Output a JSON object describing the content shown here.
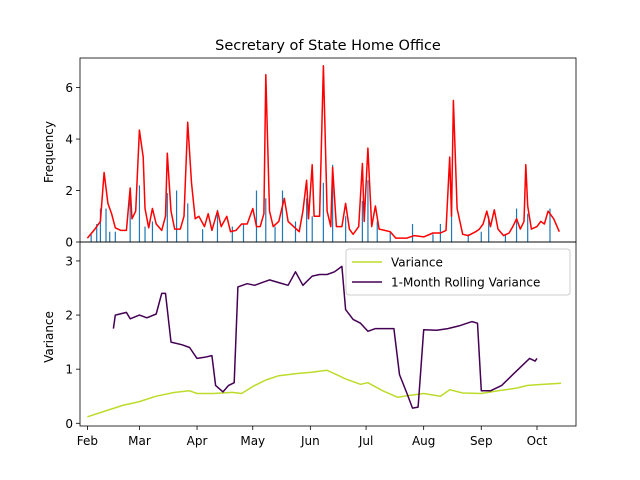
{
  "chart_data": [
    {
      "type": "bar+line",
      "title": "Secretary of State Home Office",
      "ylabel": "Frequency",
      "xlim": [
        "2023-01-28",
        "2023-10-22"
      ],
      "ylim": [
        0,
        7.15
      ],
      "yticks": [
        "0",
        "2",
        "4",
        "6"
      ],
      "colors": {
        "bars": "#1f77b4",
        "line": "#ff0000"
      },
      "series": [
        {
          "kind": "line",
          "points": [
            [
              "2023-02-01",
              0.15
            ],
            [
              "2023-02-05",
              0.5
            ],
            [
              "2023-02-08",
              0.8
            ],
            [
              "2023-02-10",
              2.7
            ],
            [
              "2023-02-12",
              1.5
            ],
            [
              "2023-02-14",
              1.1
            ],
            [
              "2023-02-16",
              0.55
            ],
            [
              "2023-02-19",
              0.45
            ],
            [
              "2023-02-22",
              0.45
            ],
            [
              "2023-02-24",
              2.1
            ],
            [
              "2023-02-25",
              0.9
            ],
            [
              "2023-02-27",
              1.2
            ],
            [
              "2023-03-01",
              4.35
            ],
            [
              "2023-03-03",
              3.3
            ],
            [
              "2023-03-04",
              1.3
            ],
            [
              "2023-03-06",
              0.55
            ],
            [
              "2023-03-08",
              1.3
            ],
            [
              "2023-03-10",
              0.7
            ],
            [
              "2023-03-13",
              0.45
            ],
            [
              "2023-03-15",
              1.0
            ],
            [
              "2023-03-16",
              3.45
            ],
            [
              "2023-03-18",
              1.2
            ],
            [
              "2023-03-20",
              0.5
            ],
            [
              "2023-03-23",
              0.5
            ],
            [
              "2023-03-25",
              1.0
            ],
            [
              "2023-03-27",
              4.65
            ],
            [
              "2023-03-29",
              2.3
            ],
            [
              "2023-03-31",
              0.9
            ],
            [
              "2023-04-02",
              1.0
            ],
            [
              "2023-04-05",
              0.6
            ],
            [
              "2023-04-07",
              1.1
            ],
            [
              "2023-04-09",
              0.45
            ],
            [
              "2023-04-12",
              1.2
            ],
            [
              "2023-04-14",
              0.6
            ],
            [
              "2023-04-17",
              1.0
            ],
            [
              "2023-04-19",
              0.4
            ],
            [
              "2023-04-22",
              0.45
            ],
            [
              "2023-04-25",
              0.7
            ],
            [
              "2023-04-28",
              0.7
            ],
            [
              "2023-05-01",
              1.3
            ],
            [
              "2023-05-03",
              0.6
            ],
            [
              "2023-05-05",
              0.6
            ],
            [
              "2023-05-07",
              1.1
            ],
            [
              "2023-05-08",
              6.5
            ],
            [
              "2023-05-10",
              1.2
            ],
            [
              "2023-05-12",
              0.6
            ],
            [
              "2023-05-15",
              0.8
            ],
            [
              "2023-05-18",
              1.7
            ],
            [
              "2023-05-20",
              0.8
            ],
            [
              "2023-05-23",
              0.6
            ],
            [
              "2023-05-26",
              0.4
            ],
            [
              "2023-05-28",
              1.2
            ],
            [
              "2023-05-30",
              2.4
            ],
            [
              "2023-05-31",
              0.9
            ],
            [
              "2023-06-02",
              3.0
            ],
            [
              "2023-06-03",
              1.0
            ],
            [
              "2023-06-06",
              1.0
            ],
            [
              "2023-06-08",
              6.85
            ],
            [
              "2023-06-10",
              1.2
            ],
            [
              "2023-06-12",
              0.6
            ],
            [
              "2023-06-13",
              2.9
            ],
            [
              "2023-06-15",
              0.6
            ],
            [
              "2023-06-18",
              0.6
            ],
            [
              "2023-06-20",
              1.5
            ],
            [
              "2023-06-22",
              0.5
            ],
            [
              "2023-06-24",
              0.3
            ],
            [
              "2023-06-27",
              0.6
            ],
            [
              "2023-06-29",
              3.05
            ],
            [
              "2023-06-30",
              0.8
            ],
            [
              "2023-07-02",
              3.65
            ],
            [
              "2023-07-04",
              0.6
            ],
            [
              "2023-07-06",
              1.4
            ],
            [
              "2023-07-08",
              0.5
            ],
            [
              "2023-07-11",
              0.45
            ],
            [
              "2023-07-14",
              0.4
            ],
            [
              "2023-07-17",
              0.15
            ],
            [
              "2023-07-20",
              0.15
            ],
            [
              "2023-07-23",
              0.15
            ],
            [
              "2023-07-27",
              0.25
            ],
            [
              "2023-08-01",
              0.2
            ],
            [
              "2023-08-06",
              0.35
            ],
            [
              "2023-08-10",
              0.35
            ],
            [
              "2023-08-13",
              0.45
            ],
            [
              "2023-08-15",
              3.3
            ],
            [
              "2023-08-16",
              1.0
            ],
            [
              "2023-08-17",
              5.5
            ],
            [
              "2023-08-19",
              1.3
            ],
            [
              "2023-08-22",
              0.3
            ],
            [
              "2023-08-25",
              0.25
            ],
            [
              "2023-08-29",
              0.4
            ],
            [
              "2023-08-31",
              0.5
            ],
            [
              "2023-09-02",
              0.7
            ],
            [
              "2023-09-04",
              1.2
            ],
            [
              "2023-09-06",
              0.6
            ],
            [
              "2023-09-08",
              1.25
            ],
            [
              "2023-09-10",
              0.5
            ],
            [
              "2023-09-13",
              0.25
            ],
            [
              "2023-09-16",
              0.35
            ],
            [
              "2023-09-18",
              0.6
            ],
            [
              "2023-09-20",
              0.9
            ],
            [
              "2023-09-22",
              0.5
            ],
            [
              "2023-09-24",
              0.8
            ],
            [
              "2023-09-25",
              3.0
            ],
            [
              "2023-09-26",
              1.4
            ],
            [
              "2023-09-28",
              0.5
            ],
            [
              "2023-10-01",
              0.6
            ],
            [
              "2023-10-03",
              0.8
            ],
            [
              "2023-10-05",
              0.7
            ],
            [
              "2023-10-07",
              1.2
            ],
            [
              "2023-10-10",
              0.9
            ],
            [
              "2023-10-13",
              0.4
            ]
          ]
        }
      ],
      "bars": [
        [
          "2023-02-03",
          0.3
        ],
        [
          "2023-02-06",
          0.7
        ],
        [
          "2023-02-08",
          1.3
        ],
        [
          "2023-02-11",
          1.3
        ],
        [
          "2023-02-13",
          0.4
        ],
        [
          "2023-02-16",
          0.4
        ],
        [
          "2023-02-24",
          1.7
        ],
        [
          "2023-03-01",
          2.2
        ],
        [
          "2023-03-04",
          0.6
        ],
        [
          "2023-03-08",
          0.8
        ],
        [
          "2023-03-16",
          1.9
        ],
        [
          "2023-03-21",
          2.0
        ],
        [
          "2023-03-27",
          1.5
        ],
        [
          "2023-04-04",
          0.5
        ],
        [
          "2023-04-12",
          1.25
        ],
        [
          "2023-04-20",
          0.6
        ],
        [
          "2023-04-26",
          0.7
        ],
        [
          "2023-05-03",
          2.0
        ],
        [
          "2023-05-08",
          1.7
        ],
        [
          "2023-05-13",
          0.6
        ],
        [
          "2023-05-17",
          2.0
        ],
        [
          "2023-05-24",
          0.8
        ],
        [
          "2023-05-30",
          1.7
        ],
        [
          "2023-06-02",
          1.0
        ],
        [
          "2023-06-08",
          2.3
        ],
        [
          "2023-06-13",
          3.0
        ],
        [
          "2023-06-20",
          1.0
        ],
        [
          "2023-06-29",
          1.6
        ],
        [
          "2023-07-02",
          2.4
        ],
        [
          "2023-07-07",
          0.8
        ],
        [
          "2023-07-14",
          0.4
        ],
        [
          "2023-07-26",
          0.7
        ],
        [
          "2023-08-06",
          0.3
        ],
        [
          "2023-08-10",
          0.7
        ],
        [
          "2023-08-16",
          1.8
        ],
        [
          "2023-08-25",
          0.3
        ],
        [
          "2023-09-01",
          0.4
        ],
        [
          "2023-09-05",
          1.0
        ],
        [
          "2023-09-14",
          0.3
        ],
        [
          "2023-09-20",
          1.3
        ],
        [
          "2023-09-26",
          1.1
        ],
        [
          "2023-10-08",
          1.3
        ]
      ]
    },
    {
      "type": "line",
      "ylabel": "Variance",
      "xlim": [
        "2023-01-28",
        "2023-10-22"
      ],
      "ylim": [
        -0.05,
        3.35
      ],
      "yticks": [
        "0",
        "1",
        "2",
        "3"
      ],
      "xticks": [
        "Feb",
        "Mar",
        "Apr",
        "May",
        "Jun",
        "Jul",
        "Aug",
        "Sep",
        "Oct"
      ],
      "legend": {
        "placement": "top-right",
        "entries": [
          "Variance",
          "1-Month Rolling Variance"
        ]
      },
      "series": [
        {
          "name": "Variance",
          "color": "#bcdc2b",
          "points": [
            [
              "2023-02-01",
              0.12
            ],
            [
              "2023-02-10",
              0.22
            ],
            [
              "2023-02-20",
              0.33
            ],
            [
              "2023-03-01",
              0.4
            ],
            [
              "2023-03-10",
              0.5
            ],
            [
              "2023-03-20",
              0.57
            ],
            [
              "2023-03-28",
              0.6
            ],
            [
              "2023-04-01",
              0.55
            ],
            [
              "2023-04-10",
              0.55
            ],
            [
              "2023-04-20",
              0.57
            ],
            [
              "2023-04-25",
              0.55
            ],
            [
              "2023-05-01",
              0.68
            ],
            [
              "2023-05-08",
              0.8
            ],
            [
              "2023-05-15",
              0.88
            ],
            [
              "2023-05-25",
              0.92
            ],
            [
              "2023-06-01",
              0.94
            ],
            [
              "2023-06-10",
              0.98
            ],
            [
              "2023-06-15",
              0.9
            ],
            [
              "2023-06-20",
              0.82
            ],
            [
              "2023-06-28",
              0.72
            ],
            [
              "2023-07-02",
              0.75
            ],
            [
              "2023-07-10",
              0.6
            ],
            [
              "2023-07-18",
              0.48
            ],
            [
              "2023-07-25",
              0.52
            ],
            [
              "2023-08-01",
              0.55
            ],
            [
              "2023-08-10",
              0.5
            ],
            [
              "2023-08-15",
              0.62
            ],
            [
              "2023-08-22",
              0.56
            ],
            [
              "2023-09-01",
              0.55
            ],
            [
              "2023-09-10",
              0.6
            ],
            [
              "2023-09-20",
              0.65
            ],
            [
              "2023-09-26",
              0.7
            ],
            [
              "2023-10-05",
              0.72
            ],
            [
              "2023-10-14",
              0.74
            ]
          ]
        },
        {
          "name": "1-Month Rolling Variance",
          "color": "#440154",
          "points": [
            [
              "2023-02-15",
              1.75
            ],
            [
              "2023-02-16",
              2.0
            ],
            [
              "2023-02-22",
              2.05
            ],
            [
              "2023-02-24",
              1.93
            ],
            [
              "2023-03-01",
              2.0
            ],
            [
              "2023-03-05",
              1.95
            ],
            [
              "2023-03-10",
              2.02
            ],
            [
              "2023-03-13",
              2.4
            ],
            [
              "2023-03-15",
              2.4
            ],
            [
              "2023-03-18",
              1.5
            ],
            [
              "2023-03-24",
              1.45
            ],
            [
              "2023-03-28",
              1.4
            ],
            [
              "2023-04-01",
              1.2
            ],
            [
              "2023-04-05",
              1.22
            ],
            [
              "2023-04-09",
              1.25
            ],
            [
              "2023-04-11",
              0.7
            ],
            [
              "2023-04-15",
              0.58
            ],
            [
              "2023-04-18",
              0.7
            ],
            [
              "2023-04-21",
              0.75
            ],
            [
              "2023-04-23",
              2.52
            ],
            [
              "2023-04-28",
              2.58
            ],
            [
              "2023-05-02",
              2.55
            ],
            [
              "2023-05-06",
              2.6
            ],
            [
              "2023-05-10",
              2.65
            ],
            [
              "2023-05-15",
              2.6
            ],
            [
              "2023-05-20",
              2.55
            ],
            [
              "2023-05-24",
              2.8
            ],
            [
              "2023-05-28",
              2.55
            ],
            [
              "2023-06-02",
              2.72
            ],
            [
              "2023-06-06",
              2.75
            ],
            [
              "2023-06-10",
              2.75
            ],
            [
              "2023-06-14",
              2.8
            ],
            [
              "2023-06-18",
              2.9
            ],
            [
              "2023-06-20",
              2.1
            ],
            [
              "2023-06-24",
              1.92
            ],
            [
              "2023-06-28",
              1.85
            ],
            [
              "2023-07-02",
              1.7
            ],
            [
              "2023-07-06",
              1.75
            ],
            [
              "2023-07-12",
              1.75
            ],
            [
              "2023-07-16",
              1.75
            ],
            [
              "2023-07-19",
              0.9
            ],
            [
              "2023-07-23",
              0.55
            ],
            [
              "2023-07-26",
              0.28
            ],
            [
              "2023-07-29",
              0.3
            ],
            [
              "2023-08-01",
              1.73
            ],
            [
              "2023-08-08",
              1.72
            ],
            [
              "2023-08-14",
              1.75
            ],
            [
              "2023-08-20",
              1.8
            ],
            [
              "2023-08-27",
              1.88
            ],
            [
              "2023-08-30",
              1.85
            ],
            [
              "2023-09-01",
              0.6
            ],
            [
              "2023-09-06",
              0.6
            ],
            [
              "2023-09-12",
              0.7
            ],
            [
              "2023-09-18",
              0.9
            ],
            [
              "2023-09-24",
              1.1
            ],
            [
              "2023-09-27",
              1.2
            ],
            [
              "2023-09-30",
              1.15
            ],
            [
              "2023-10-01",
              1.2
            ]
          ]
        }
      ]
    }
  ]
}
